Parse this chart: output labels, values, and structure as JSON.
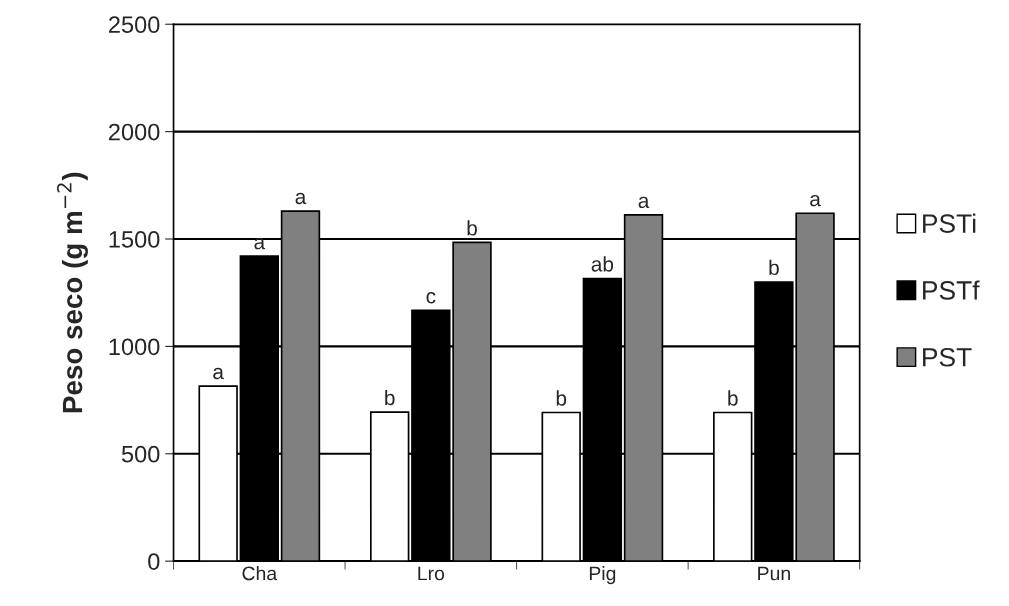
{
  "chart_data": {
    "type": "bar",
    "ylabel": "Peso seco (g m$^{−2}$)",
    "categories": [
      "Cha",
      "Lro",
      "Pig",
      "Pun"
    ],
    "series": [
      {
        "name": "PSTi",
        "color": "#ffffff",
        "values": [
          815,
          694,
          692,
          692
        ],
        "value_labels": [
          "a",
          "b",
          "b",
          "b"
        ]
      },
      {
        "name": "PSTf",
        "color": "#000000",
        "values": [
          1420,
          1168,
          1316,
          1300
        ],
        "value_labels": [
          "a",
          "c",
          "ab",
          "b"
        ]
      },
      {
        "name": "PST",
        "color": "#808080",
        "values": [
          1630,
          1484,
          1612,
          1620
        ],
        "value_labels": [
          "a",
          "b",
          "a",
          "a"
        ]
      }
    ],
    "ylim": [
      0,
      2500
    ],
    "yticks": [
      0,
      500,
      1000,
      1500,
      2000,
      2500
    ],
    "grid": "y",
    "legend": "right"
  }
}
